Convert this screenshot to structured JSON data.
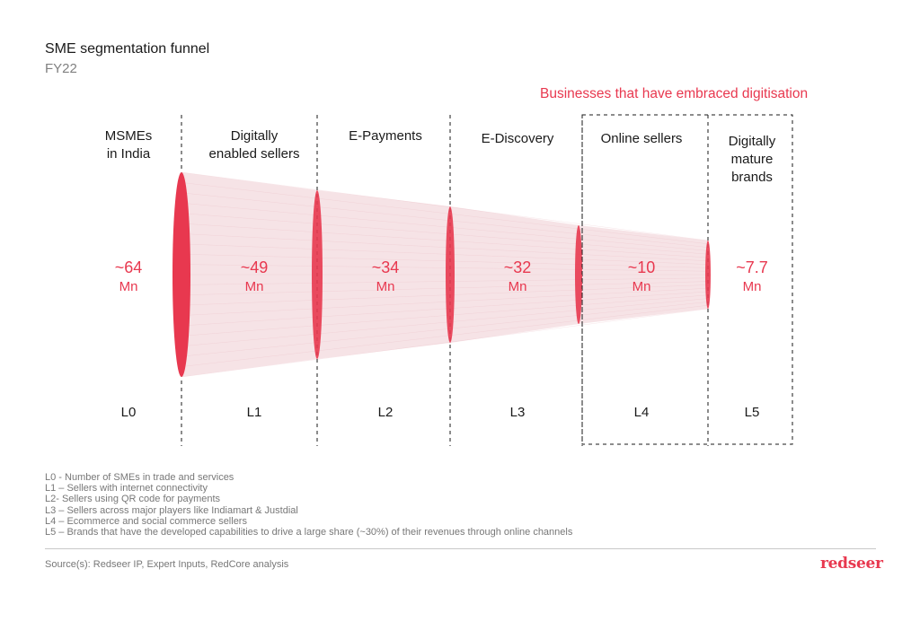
{
  "header": {
    "title": "SME segmentation funnel",
    "subtitle": "FY22"
  },
  "digitisation_label": "Businesses that have embraced digitisation",
  "chart_data": {
    "type": "funnel",
    "stages": [
      {
        "level": "L0",
        "label": "MSMEs\nin India",
        "value_text": "~64",
        "unit": "Mn",
        "value": 64
      },
      {
        "level": "L1",
        "label": "Digitally\nenabled sellers",
        "value_text": "~49",
        "unit": "Mn",
        "value": 49
      },
      {
        "level": "L2",
        "label": "E-Payments",
        "value_text": "~34",
        "unit": "Mn",
        "value": 34
      },
      {
        "level": "L3",
        "label": "E-Discovery",
        "value_text": "~32",
        "unit": "Mn",
        "value": 32
      },
      {
        "level": "L4",
        "label": "Online sellers",
        "value_text": "~10",
        "unit": "Mn",
        "value": 10
      },
      {
        "level": "L5",
        "label": "Digitally\nmature\nbrands",
        "value_text": "~7.7",
        "unit": "Mn",
        "value": 7.7
      }
    ],
    "highlighted_levels": [
      "L4",
      "L5"
    ]
  },
  "notes": [
    "L0 -  Number of SMEs in trade and services",
    "L1 – Sellers with internet connectivity",
    "L2- Sellers using QR code for payments",
    "L3 – Sellers across major players like Indiamart & Justdial",
    "L4 – Ecommerce and social commerce sellers",
    "L5 – Brands that have the developed capabilities to drive a large share (~30%) of their revenues through online channels"
  ],
  "footer": {
    "source": "Source(s): Redseer IP, Expert Inputs, RedCore analysis",
    "logo": "redseer"
  },
  "colors": {
    "accent": "#e8384f",
    "funnel_fill": "#f3dadd",
    "text": "#1a1a1a",
    "muted": "#808080"
  }
}
